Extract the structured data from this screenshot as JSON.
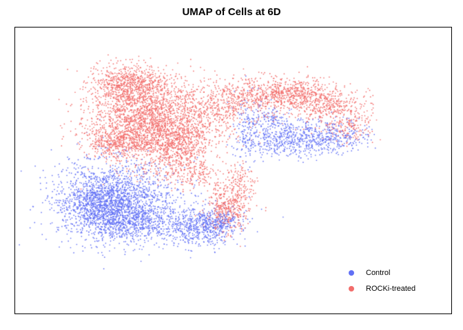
{
  "chart_data": {
    "type": "scatter",
    "title": "UMAP of Cells at 6D",
    "xlabel": "",
    "ylabel": "",
    "grid": false,
    "legend_position": "bottom-right",
    "series": [
      {
        "name": "Control",
        "color": "#6170F5",
        "clusters": [
          {
            "center": [
              19,
              65
            ],
            "spread": [
              8,
              8.5
            ],
            "n": 1900
          },
          {
            "center": [
              12,
              66
            ],
            "spread": [
              4.5,
              5
            ],
            "n": 450
          },
          {
            "center": [
              24,
              74
            ],
            "spread": [
              4.5,
              3.5
            ],
            "n": 350
          },
          {
            "center": [
              42,
              75
            ],
            "spread": [
              5.5,
              4
            ],
            "n": 600
          },
          {
            "center": [
              48,
              73
            ],
            "spread": [
              3,
              3
            ],
            "n": 150
          },
          {
            "center": [
              67,
              39
            ],
            "spread": [
              5,
              3.5
            ],
            "n": 380
          },
          {
            "center": [
              78,
              38
            ],
            "spread": [
              5.5,
              3.5
            ],
            "n": 350
          },
          {
            "center": [
              56,
              36
            ],
            "spread": [
              2.5,
              7
            ],
            "n": 180
          },
          {
            "center": [
              62,
              31
            ],
            "spread": [
              3,
              2.5
            ],
            "n": 100
          }
        ]
      },
      {
        "name": "ROCKi-treated",
        "color": "#F26D6B",
        "clusters": [
          {
            "center": [
              28,
              31
            ],
            "spread": [
              8,
              9
            ],
            "n": 2300
          },
          {
            "center": [
              22,
              16
            ],
            "spread": [
              5,
              4
            ],
            "n": 600
          },
          {
            "center": [
              36,
              42
            ],
            "spread": [
              4.5,
              5
            ],
            "n": 450
          },
          {
            "center": [
              19,
              40
            ],
            "spread": [
              4,
              3
            ],
            "n": 300
          },
          {
            "center": [
              45,
              28
            ],
            "spread": [
              6,
              6
            ],
            "n": 350
          },
          {
            "center": [
              57,
              21
            ],
            "spread": [
              6,
              4
            ],
            "n": 450
          },
          {
            "center": [
              69,
              20
            ],
            "spread": [
              5,
              3
            ],
            "n": 400
          },
          {
            "center": [
              78,
              25
            ],
            "spread": [
              6,
              3.5
            ],
            "n": 400
          },
          {
            "center": [
              84,
              34
            ],
            "spread": [
              3.5,
              3
            ],
            "n": 150
          },
          {
            "center": [
              50,
              67
            ],
            "spread": [
              3,
              5
            ],
            "n": 400
          },
          {
            "center": [
              54,
              58
            ],
            "spread": [
              2,
              5
            ],
            "n": 120
          },
          {
            "center": [
              40,
              53
            ],
            "spread": [
              5,
              3
            ],
            "n": 200
          }
        ]
      }
    ]
  }
}
